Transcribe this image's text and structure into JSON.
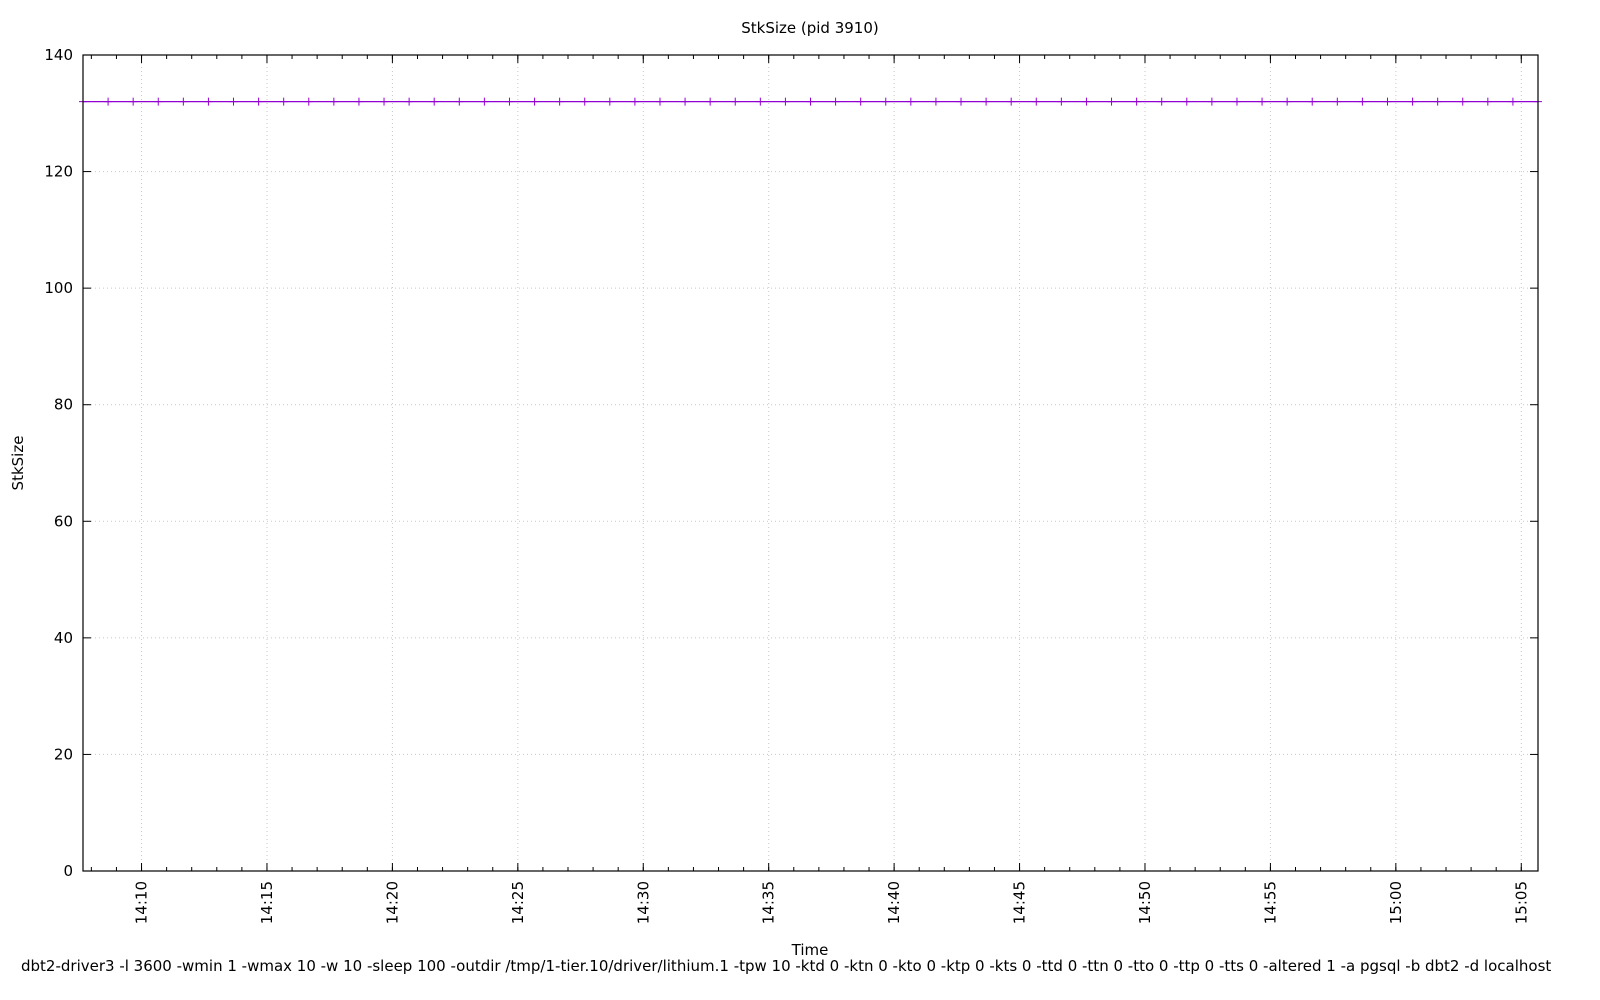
{
  "chart_data": {
    "type": "line",
    "title": "StkSize (pid 3910)",
    "xlabel": "Time",
    "ylabel": "StkSize",
    "footer": "dbt2-driver3 -l 3600 -wmin 1 -wmax 10 -w 10 -sleep 100 -outdir /tmp/1-tier.10/driver/lithium.1 -tpw 10 -ktd 0 -ktn 0 -kto 0 -ktp 0 -kts 0 -ttd 0 -ttn 0 -tto 0 -ttp 0 -tts 0 -altered 1 -a pgsql -b dbt2 -d localhost",
    "xlim": [
      "14:07:40",
      "15:05:40"
    ],
    "ylim": [
      0,
      140
    ],
    "yticks": [
      0,
      20,
      40,
      60,
      80,
      100,
      120,
      140
    ],
    "xticks": [
      "14:10",
      "14:15",
      "14:20",
      "14:25",
      "14:30",
      "14:35",
      "14:40",
      "14:45",
      "14:50",
      "14:55",
      "15:00",
      "15:05"
    ],
    "x_minor_tick_interval_minutes": 1,
    "grid": true,
    "series": [
      {
        "color": "#9400d3",
        "marker": "plus",
        "x_start": "14:07:40",
        "x_interval_seconds": 60,
        "count": 59,
        "value": 132
      }
    ]
  }
}
